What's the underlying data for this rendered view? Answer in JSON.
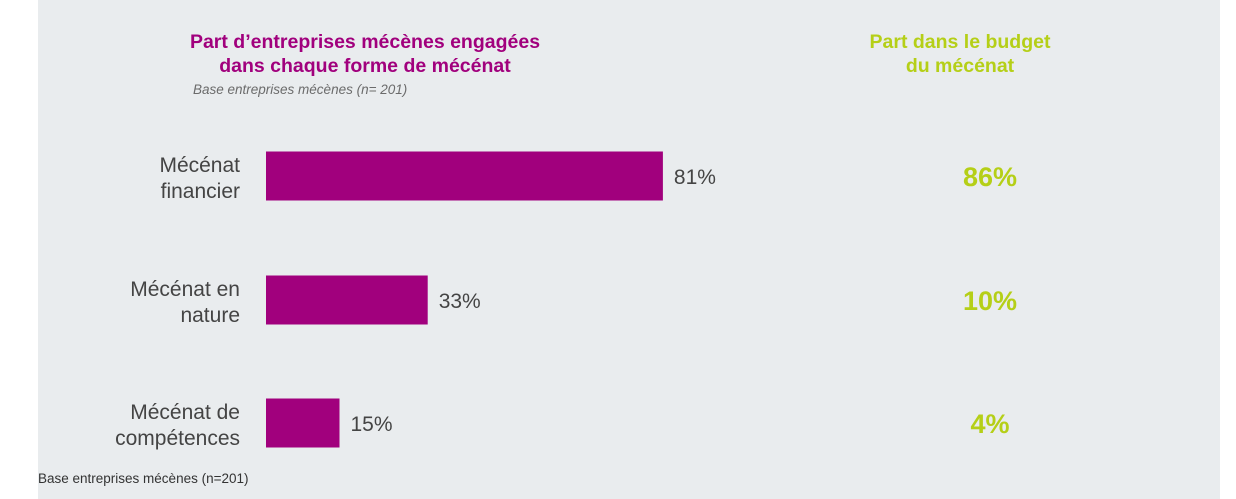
{
  "chart_data": {
    "type": "bar",
    "orientation": "horizontal",
    "title": "Part d’entreprises mécènes engagées dans chaque forme de mécénat",
    "title_lines": [
      "Part d’entreprises mécènes engagées",
      "dans chaque forme de mécénat"
    ],
    "subtitle": "Base entreprises mécènes (n= 201)",
    "categories": [
      "Mécénat financier",
      "Mécénat en nature",
      "Mécénat de compétences"
    ],
    "category_lines": [
      [
        "Mécénat",
        "financier"
      ],
      [
        "Mécénat en",
        "nature"
      ],
      [
        "Mécénat de",
        "compétences"
      ]
    ],
    "values": [
      81,
      33,
      15
    ],
    "value_labels": [
      "81%",
      "33%",
      "15%"
    ],
    "xlim": [
      0,
      100
    ],
    "grid": false,
    "bar_color": "#a1007d",
    "budget": {
      "title": "Part dans le budget du mécénat",
      "title_lines": [
        "Part dans le budget",
        "du mécénat"
      ],
      "values": [
        86,
        10,
        4
      ],
      "labels": [
        "86%",
        "10%",
        "4%"
      ],
      "color": "#b5cf17"
    }
  },
  "footnote": "Base entreprises mécènes (n=201)"
}
